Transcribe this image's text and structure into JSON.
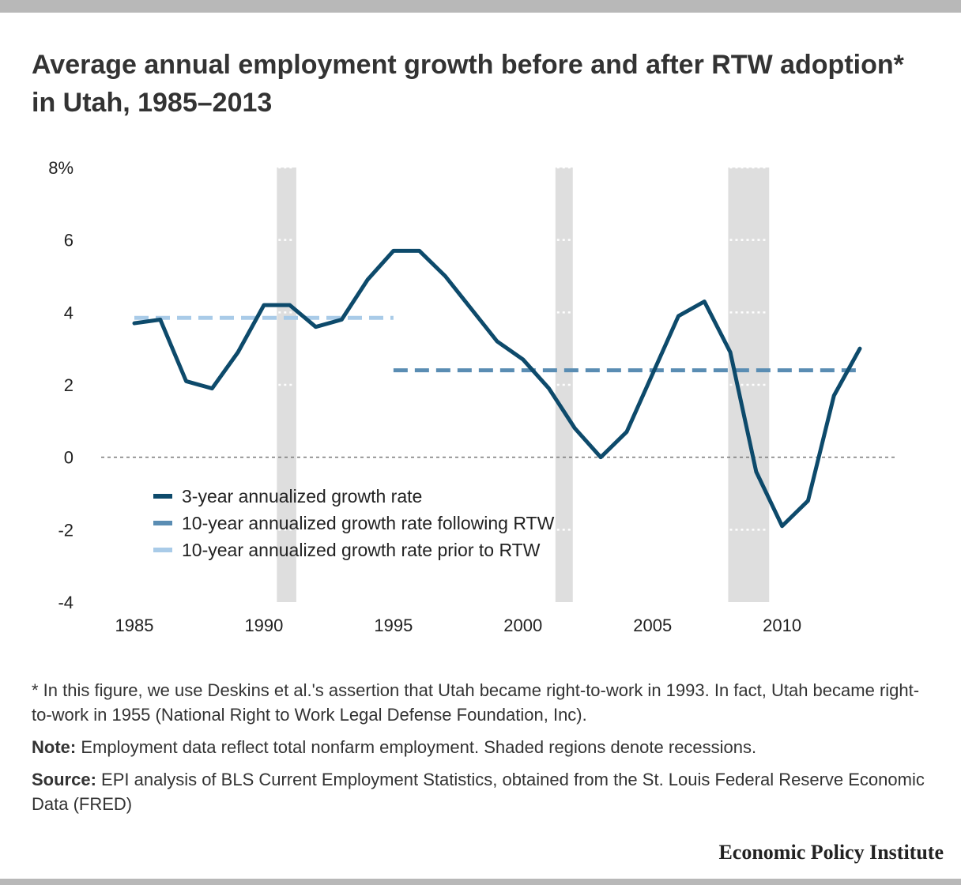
{
  "title": "Average annual employment growth before and after RTW adoption* in Utah, 1985–2013",
  "chart_data": {
    "type": "line",
    "x_ticks": [
      "1985",
      "1990",
      "1995",
      "2000",
      "2005",
      "2010"
    ],
    "y_ticks": [
      "8%",
      "6",
      "4",
      "2",
      "0",
      "-2",
      "-4"
    ],
    "xlim": [
      1985,
      2013
    ],
    "ylim": [
      -4,
      8
    ],
    "reference_line": 0,
    "recessions": [
      [
        1990.5,
        1991.25
      ],
      [
        2001.25,
        2001.92
      ],
      [
        2007.92,
        2009.5
      ]
    ],
    "series": [
      {
        "name": "3-year annualized growth rate",
        "color": "#0d4a6b",
        "style": "solid",
        "x": [
          1985,
          1986,
          1987,
          1988,
          1989,
          1990,
          1991,
          1992,
          1993,
          1994,
          1995,
          1996,
          1997,
          1998,
          1999,
          2000,
          2001,
          2002,
          2003,
          2004,
          2005,
          2006,
          2007,
          2008,
          2009,
          2010,
          2011,
          2012,
          2013
        ],
        "values": [
          3.7,
          3.8,
          2.1,
          1.9,
          2.9,
          4.2,
          4.2,
          3.6,
          3.8,
          4.9,
          5.7,
          5.7,
          5.0,
          4.1,
          3.2,
          2.7,
          1.9,
          0.8,
          0.0,
          0.7,
          2.3,
          3.9,
          4.3,
          2.9,
          -0.4,
          -1.9,
          -1.2,
          1.7,
          3.0
        ]
      },
      {
        "name": "10-year annualized growth rate following RTW",
        "color": "#5a8db3",
        "style": "dashed",
        "x": [
          1995,
          2013
        ],
        "values": [
          2.4,
          2.4
        ]
      },
      {
        "name": "10-year annualized growth rate prior to RTW",
        "color": "#a9cbe8",
        "style": "dashed",
        "x": [
          1985,
          1995
        ],
        "values": [
          3.85,
          3.85
        ]
      }
    ]
  },
  "footnote": "* In this figure, we use Deskins et al.'s assertion that Utah became right-to-work in 1993. In fact, Utah became right-to-work in 1955 (National Right to Work Legal Defense Foundation, Inc).",
  "note": {
    "label": "Note:",
    "text": " Employment data reflect total nonfarm employment. Shaded regions denote recessions."
  },
  "source": {
    "label": "Source:",
    "text": " EPI analysis of BLS Current Employment Statistics, obtained from the St. Louis Federal Reserve Economic Data (FRED)"
  },
  "brand": "Economic Policy Institute"
}
